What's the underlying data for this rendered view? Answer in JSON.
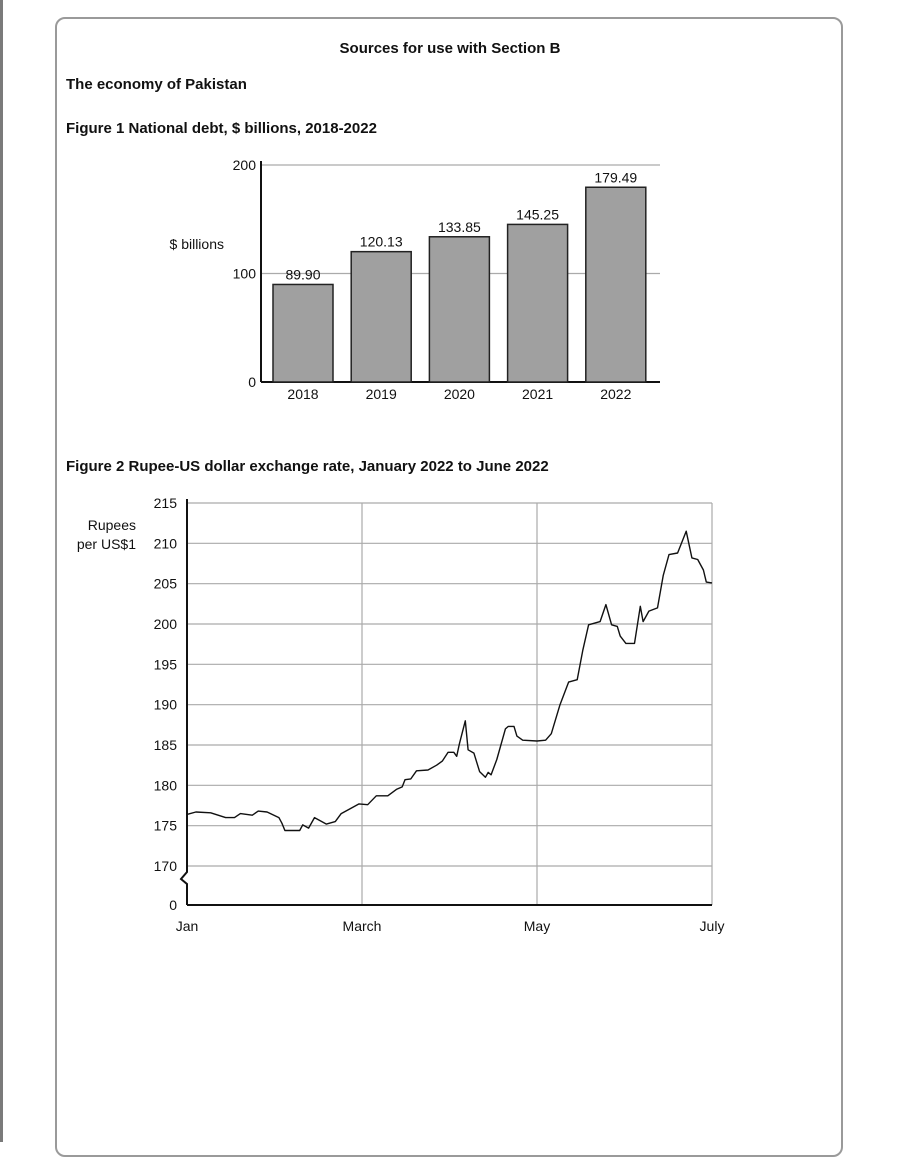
{
  "page": {
    "header": "Sources for use with Section B",
    "section_title": "The economy of Pakistan"
  },
  "chart_data": [
    {
      "type": "bar",
      "title": "Figure 1 National debt, $ billions, 2018-2022",
      "ylabel": "$ billions",
      "xlabel": "",
      "categories": [
        "2018",
        "2019",
        "2020",
        "2021",
        "2022"
      ],
      "values": [
        89.9,
        120.13,
        133.85,
        145.25,
        179.49
      ],
      "data_labels": [
        "89.90",
        "120.13",
        "133.85",
        "145.25",
        "179.49"
      ],
      "ylim": [
        0,
        200
      ],
      "yticks": [
        "0",
        "100",
        "200"
      ],
      "grid": true,
      "bar_color": "#a0a0a0"
    },
    {
      "type": "line",
      "title": "Figure 2 Rupee-US dollar exchange rate, January 2022 to June 2022",
      "ylabel": "Rupees per US$1",
      "ylabel_lines": [
        "Rupees",
        "per US$1"
      ],
      "xlabel": "",
      "xticks": [
        "Jan",
        "March",
        "May",
        "July"
      ],
      "yticks": [
        "0",
        "170",
        "175",
        "180",
        "185",
        "190",
        "195",
        "200",
        "205",
        "210",
        "215"
      ],
      "ylim": [
        170,
        215
      ],
      "y_axis_break": true,
      "grid": true,
      "points": [
        [
          "2022-01-01",
          176.4
        ],
        [
          "2022-01-04",
          176.7
        ],
        [
          "2022-01-09",
          176.6
        ],
        [
          "2022-01-14",
          176.0
        ],
        [
          "2022-01-17",
          176.0
        ],
        [
          "2022-01-19",
          176.5
        ],
        [
          "2022-01-23",
          176.3
        ],
        [
          "2022-01-25",
          176.8
        ],
        [
          "2022-01-28",
          176.7
        ],
        [
          "2022-02-01",
          176.0
        ],
        [
          "2022-02-02",
          175.3
        ],
        [
          "2022-02-03",
          174.4
        ],
        [
          "2022-02-08",
          174.4
        ],
        [
          "2022-02-09",
          175.1
        ],
        [
          "2022-02-11",
          174.7
        ],
        [
          "2022-02-13",
          176.0
        ],
        [
          "2022-02-17",
          175.2
        ],
        [
          "2022-02-20",
          175.5
        ],
        [
          "2022-02-22",
          176.5
        ],
        [
          "2022-02-26",
          177.3
        ],
        [
          "2022-02-28",
          177.7
        ],
        [
          "2022-03-03",
          177.6
        ],
        [
          "2022-03-06",
          178.7
        ],
        [
          "2022-03-10",
          178.7
        ],
        [
          "2022-03-13",
          179.5
        ],
        [
          "2022-03-15",
          179.8
        ],
        [
          "2022-03-16",
          180.7
        ],
        [
          "2022-03-18",
          180.8
        ],
        [
          "2022-03-20",
          181.8
        ],
        [
          "2022-03-24",
          181.9
        ],
        [
          "2022-03-27",
          182.5
        ],
        [
          "2022-03-29",
          183.0
        ],
        [
          "2022-03-31",
          184.1
        ],
        [
          "2022-04-02",
          184.1
        ],
        [
          "2022-04-03",
          183.6
        ],
        [
          "2022-04-04",
          185.2
        ],
        [
          "2022-04-06",
          188.0
        ],
        [
          "2022-04-07",
          184.4
        ],
        [
          "2022-04-09",
          184.0
        ],
        [
          "2022-04-11",
          181.7
        ],
        [
          "2022-04-13",
          181.0
        ],
        [
          "2022-04-14",
          181.6
        ],
        [
          "2022-04-15",
          181.3
        ],
        [
          "2022-04-17",
          183.2
        ],
        [
          "2022-04-20",
          187.0
        ],
        [
          "2022-04-21",
          187.3
        ],
        [
          "2022-04-23",
          187.3
        ],
        [
          "2022-04-24",
          186.1
        ],
        [
          "2022-04-26",
          185.6
        ],
        [
          "2022-05-01",
          185.5
        ],
        [
          "2022-05-04",
          185.6
        ],
        [
          "2022-05-06",
          186.4
        ],
        [
          "2022-05-09",
          190.0
        ],
        [
          "2022-05-12",
          192.8
        ],
        [
          "2022-05-15",
          193.1
        ],
        [
          "2022-05-17",
          196.8
        ],
        [
          "2022-05-19",
          199.9
        ],
        [
          "2022-05-23",
          200.3
        ],
        [
          "2022-05-25",
          202.4
        ],
        [
          "2022-05-27",
          199.9
        ],
        [
          "2022-05-29",
          199.7
        ],
        [
          "2022-05-30",
          198.5
        ],
        [
          "2022-06-01",
          197.6
        ],
        [
          "2022-06-04",
          197.6
        ],
        [
          "2022-06-06",
          202.2
        ],
        [
          "2022-06-07",
          200.3
        ],
        [
          "2022-06-09",
          201.6
        ],
        [
          "2022-06-12",
          202.0
        ],
        [
          "2022-06-14",
          206.0
        ],
        [
          "2022-06-16",
          208.6
        ],
        [
          "2022-06-19",
          208.8
        ],
        [
          "2022-06-22",
          211.5
        ],
        [
          "2022-06-24",
          208.2
        ],
        [
          "2022-06-26",
          208.0
        ],
        [
          "2022-06-28",
          206.7
        ],
        [
          "2022-06-29",
          205.2
        ],
        [
          "2022-07-01",
          205.1
        ]
      ]
    }
  ]
}
